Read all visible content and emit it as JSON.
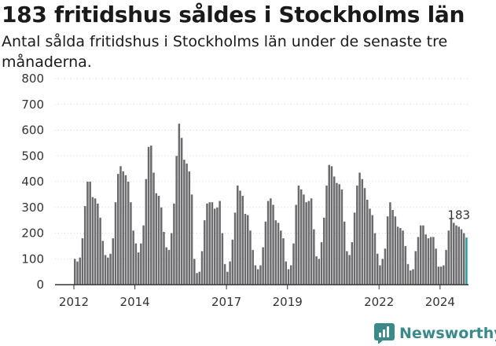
{
  "title": "183 fritidshus såldes i Stockholms län",
  "subtitle": "Antal sålda fritidshus i Stockholms län under de senaste tre månaderna.",
  "brand": {
    "name": "Newsworthy",
    "icon": "chart-logo-icon",
    "color": "#3a8a8a"
  },
  "chart_data": {
    "type": "bar",
    "title": "183 fritidshus såldes i Stockholms län",
    "subtitle": "Antal sålda fritidshus i Stockholms län under de senaste tre månaderna.",
    "xlabel": "",
    "ylabel": "",
    "ylim": [
      0,
      800
    ],
    "yticks": [
      0,
      100,
      200,
      300,
      400,
      500,
      600,
      700,
      800
    ],
    "xtick_labels": [
      "2012",
      "2014",
      "2017",
      "2019",
      "2022",
      "2024"
    ],
    "xtick_index": [
      0,
      24,
      60,
      84,
      120,
      144
    ],
    "grid": true,
    "bar_color": "#6b6b6d",
    "highlight_color": "#2a9d9d",
    "annotation": {
      "text": "183",
      "index": 151
    },
    "values": [
      100,
      90,
      105,
      180,
      305,
      400,
      400,
      340,
      335,
      315,
      260,
      170,
      115,
      105,
      120,
      180,
      320,
      430,
      460,
      440,
      425,
      400,
      320,
      210,
      160,
      125,
      160,
      230,
      410,
      535,
      540,
      435,
      355,
      345,
      300,
      205,
      145,
      135,
      200,
      315,
      500,
      625,
      570,
      485,
      470,
      440,
      350,
      100,
      45,
      50,
      130,
      250,
      315,
      320,
      320,
      295,
      300,
      325,
      200,
      80,
      50,
      90,
      175,
      280,
      385,
      365,
      345,
      275,
      270,
      210,
      135,
      75,
      60,
      75,
      145,
      245,
      325,
      335,
      310,
      250,
      240,
      210,
      180,
      90,
      60,
      75,
      160,
      310,
      385,
      370,
      350,
      320,
      325,
      335,
      215,
      110,
      100,
      165,
      260,
      385,
      465,
      460,
      420,
      395,
      390,
      370,
      245,
      130,
      115,
      165,
      280,
      385,
      435,
      410,
      375,
      330,
      295,
      270,
      200,
      120,
      75,
      100,
      140,
      265,
      320,
      290,
      265,
      225,
      220,
      210,
      150,
      80,
      55,
      60,
      130,
      185,
      230,
      230,
      195,
      180,
      185,
      185,
      140,
      70,
      70,
      75,
      135,
      210,
      255,
      240,
      230,
      225,
      215,
      200,
      183
    ]
  }
}
